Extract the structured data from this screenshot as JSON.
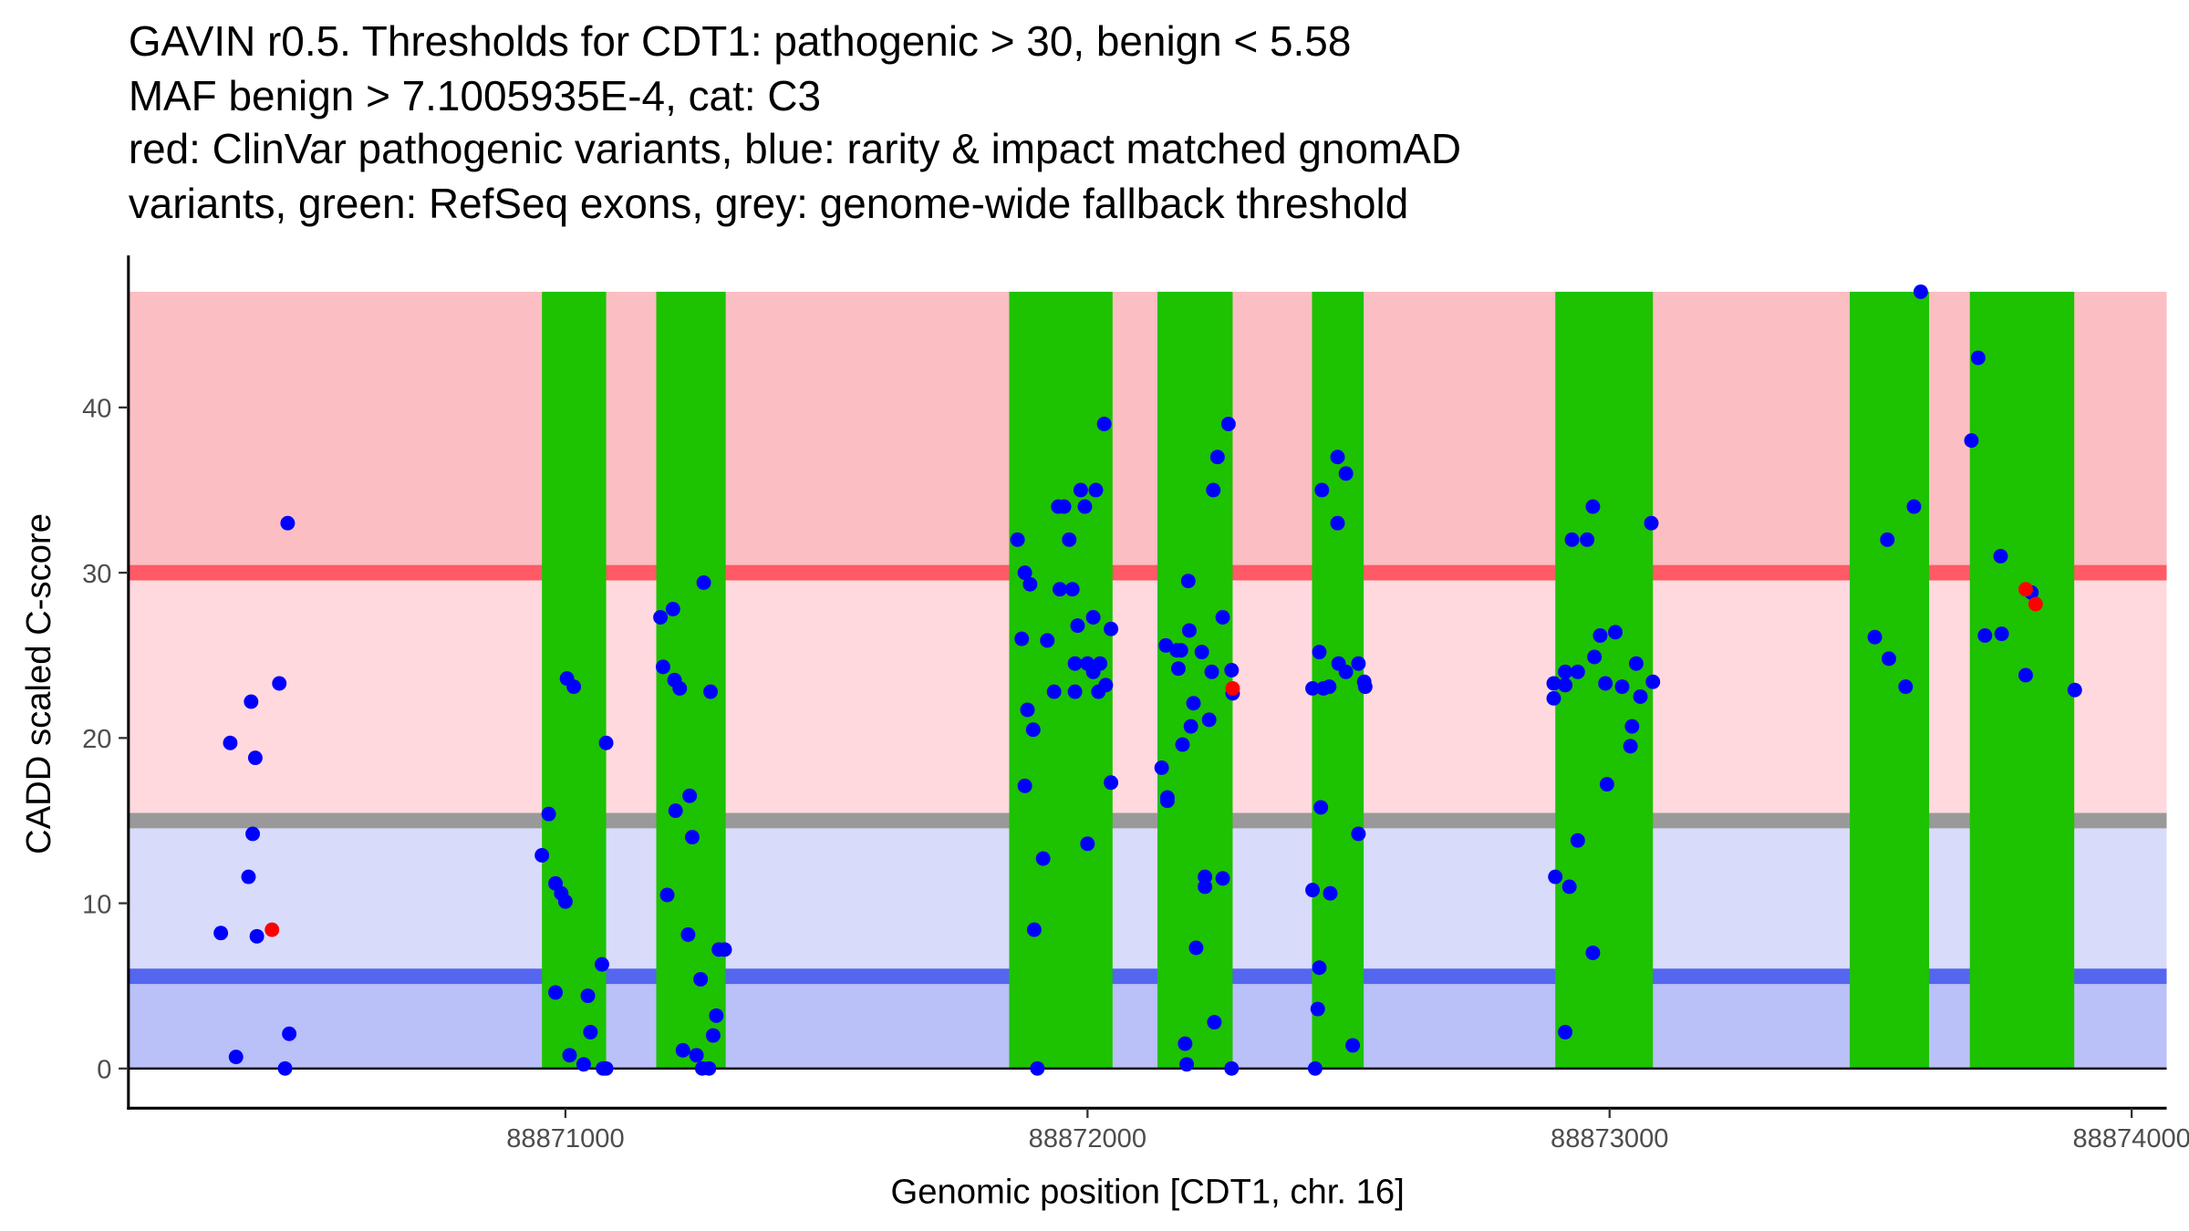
{
  "chart_data": {
    "type": "scatter",
    "title_lines": [
      "GAVIN r0.5. Thresholds for CDT1: pathogenic > 30, benign < 5.58",
      "MAF benign > 7.1005935E-4, cat: C3",
      "red: ClinVar pathogenic variants, blue: rarity & impact matched gnomAD",
      "variants, green: RefSeq exons, grey: genome-wide fallback threshold"
    ],
    "xlabel": "Genomic position [CDT1, chr. 16]",
    "ylabel": "CADD scaled C-score",
    "xlim": [
      88870163,
      88874067
    ],
    "ylim": [
      -2.4,
      49.2
    ],
    "x_ticks": [
      88871000,
      88872000,
      88873000,
      88874000
    ],
    "x_tick_labels": [
      "88871000",
      "88872000",
      "88873000",
      "88874000"
    ],
    "y_ticks": [
      0,
      10,
      20,
      30,
      40
    ],
    "y_tick_labels": [
      "0",
      "10",
      "20",
      "30",
      "40"
    ],
    "thresholds": {
      "pathogenic": 30,
      "benign": 5.58,
      "fallback": 15,
      "max_score": 47
    },
    "colors": {
      "band_top": "#FBBEC3",
      "band_mid": "#FFD9DD",
      "band_lowmid": "#D8DBFA",
      "band_low": "#BAC0F8",
      "pathogenic_line": "#FF5A66",
      "fallback_line": "#999999",
      "benign_line": "#5566EE",
      "exon": "#1DC200",
      "gnomad": "#0000FF",
      "clinvar": "#FF0000"
    },
    "exons": [
      [
        88870955,
        88871078
      ],
      [
        88871174,
        88871307
      ],
      [
        88871850,
        88872048
      ],
      [
        88872134,
        88872278
      ],
      [
        88872430,
        88872529
      ],
      [
        88872896,
        88873083
      ],
      [
        88873460,
        88873612
      ],
      [
        88873690,
        88873890
      ]
    ],
    "series": [
      {
        "name": "gnomAD variants",
        "color": "blue",
        "points": [
          [
            88870340,
            8.2
          ],
          [
            88870358,
            19.7
          ],
          [
            88870369,
            0.7
          ],
          [
            88870393,
            11.6
          ],
          [
            88870398,
            22.2
          ],
          [
            88870401,
            14.2
          ],
          [
            88870406,
            18.8
          ],
          [
            88870409,
            8.0
          ],
          [
            88870452,
            23.3
          ],
          [
            88870468,
            33.0
          ],
          [
            88870463,
            0
          ],
          [
            88870471,
            2.1
          ],
          [
            88870955,
            12.9
          ],
          [
            88870968,
            15.4
          ],
          [
            88870981,
            11.2
          ],
          [
            88870992,
            10.6
          ],
          [
            88871000,
            10.1
          ],
          [
            88870981,
            4.6
          ],
          [
            88871003,
            23.6
          ],
          [
            88871016,
            23.1
          ],
          [
            88871008,
            0.8
          ],
          [
            88871035,
            0.25
          ],
          [
            88871043,
            4.4
          ],
          [
            88871048,
            2.2
          ],
          [
            88871070,
            6.3
          ],
          [
            88871078,
            19.7
          ],
          [
            88871072,
            0
          ],
          [
            88871078,
            0
          ],
          [
            88871182,
            27.3
          ],
          [
            88871206,
            27.8
          ],
          [
            88871187,
            24.3
          ],
          [
            88871209,
            23.5
          ],
          [
            88871219,
            23.0
          ],
          [
            88871265,
            29.4
          ],
          [
            88871278,
            22.8
          ],
          [
            88871195,
            10.5
          ],
          [
            88871211,
            15.6
          ],
          [
            88871238,
            16.5
          ],
          [
            88871243,
            14.0
          ],
          [
            88871235,
            8.1
          ],
          [
            88871259,
            5.4
          ],
          [
            88871225,
            1.1
          ],
          [
            88871251,
            0.8
          ],
          [
            88871262,
            0
          ],
          [
            88871275,
            0
          ],
          [
            88871283,
            2.0
          ],
          [
            88871289,
            3.2
          ],
          [
            88871294,
            7.2
          ],
          [
            88871305,
            7.2
          ],
          [
            88871866,
            32.0
          ],
          [
            88871880,
            30.0
          ],
          [
            88871890,
            29.3
          ],
          [
            88871874,
            26.0
          ],
          [
            88871885,
            21.7
          ],
          [
            88871896,
            20.5
          ],
          [
            88871880,
            17.1
          ],
          [
            88871898,
            8.4
          ],
          [
            88871904,
            0
          ],
          [
            88871915,
            12.7
          ],
          [
            88871923,
            25.9
          ],
          [
            88871936,
            22.8
          ],
          [
            88871944,
            34.0
          ],
          [
            88871955,
            34.0
          ],
          [
            88871965,
            32.0
          ],
          [
            88871947,
            29.0
          ],
          [
            88871971,
            29.0
          ],
          [
            88871976,
            22.8
          ],
          [
            88871981,
            26.8
          ],
          [
            88871976,
            24.5
          ],
          [
            88871987,
            35.0
          ],
          [
            88871995,
            34.0
          ],
          [
            88872000,
            13.6
          ],
          [
            88872011,
            27.3
          ],
          [
            88872000,
            24.5
          ],
          [
            88872011,
            24.0
          ],
          [
            88872016,
            35.0
          ],
          [
            88872024,
            24.5
          ],
          [
            88872021,
            22.8
          ],
          [
            88872035,
            23.2
          ],
          [
            88872032,
            39.0
          ],
          [
            88872045,
            26.6
          ],
          [
            88872045,
            17.3
          ],
          [
            88872142,
            18.2
          ],
          [
            88872150,
            25.6
          ],
          [
            88872153,
            16.2
          ],
          [
            88872153,
            16.4
          ],
          [
            88872171,
            25.3
          ],
          [
            88872179,
            25.3
          ],
          [
            88872174,
            24.2
          ],
          [
            88872182,
            19.6
          ],
          [
            88872187,
            1.5
          ],
          [
            88872190,
            0.25
          ],
          [
            88872193,
            29.5
          ],
          [
            88872195,
            26.5
          ],
          [
            88872198,
            20.7
          ],
          [
            88872203,
            22.1
          ],
          [
            88872208,
            7.3
          ],
          [
            88872219,
            25.2
          ],
          [
            88872225,
            11.6
          ],
          [
            88872225,
            11.0
          ],
          [
            88872233,
            21.1
          ],
          [
            88872241,
            35.0
          ],
          [
            88872243,
            2.8
          ],
          [
            88872249,
            37.0
          ],
          [
            88872259,
            27.3
          ],
          [
            88872259,
            11.5
          ],
          [
            88872238,
            24.0
          ],
          [
            88872270,
            39.0
          ],
          [
            88872276,
            24.1
          ],
          [
            88872278,
            22.7
          ],
          [
            88872276,
            0
          ],
          [
            88872431,
            23.0
          ],
          [
            88872452,
            23.0
          ],
          [
            88872444,
            25.2
          ],
          [
            88872449,
            35.0
          ],
          [
            88872463,
            23.1
          ],
          [
            88872479,
            37.0
          ],
          [
            88872479,
            33.0
          ],
          [
            88872481,
            24.5
          ],
          [
            88872495,
            36.0
          ],
          [
            88872495,
            24.0
          ],
          [
            88872519,
            24.5
          ],
          [
            88872530,
            23.4
          ],
          [
            88872532,
            23.1
          ],
          [
            88872447,
            15.8
          ],
          [
            88872519,
            14.2
          ],
          [
            88872431,
            10.8
          ],
          [
            88872465,
            10.6
          ],
          [
            88872444,
            6.1
          ],
          [
            88872441,
            3.6
          ],
          [
            88872436,
            0
          ],
          [
            88872508,
            1.4
          ],
          [
            88872893,
            23.3
          ],
          [
            88872893,
            22.4
          ],
          [
            88872915,
            24.0
          ],
          [
            88872915,
            23.2
          ],
          [
            88872928,
            32.0
          ],
          [
            88872939,
            24.0
          ],
          [
            88872957,
            32.0
          ],
          [
            88872968,
            34.0
          ],
          [
            88872971,
            24.9
          ],
          [
            88872982,
            26.2
          ],
          [
            88872992,
            23.3
          ],
          [
            88873011,
            26.4
          ],
          [
            88873024,
            23.1
          ],
          [
            88873040,
            19.5
          ],
          [
            88873043,
            20.7
          ],
          [
            88873051,
            24.5
          ],
          [
            88873059,
            22.5
          ],
          [
            88873080,
            33.0
          ],
          [
            88873083,
            23.4
          ],
          [
            88872995,
            17.2
          ],
          [
            88872939,
            13.8
          ],
          [
            88872896,
            11.6
          ],
          [
            88872923,
            11.0
          ],
          [
            88872968,
            7.0
          ],
          [
            88872915,
            2.2
          ],
          [
            88873508,
            26.1
          ],
          [
            88873532,
            32.0
          ],
          [
            88873535,
            24.8
          ],
          [
            88873567,
            23.1
          ],
          [
            88873583,
            34.0
          ],
          [
            88873596,
            47.0
          ],
          [
            88873693,
            38.0
          ],
          [
            88873706,
            43.0
          ],
          [
            88873719,
            26.2
          ],
          [
            88873749,
            31.0
          ],
          [
            88873751,
            26.3
          ],
          [
            88873797,
            23.8
          ],
          [
            88873808,
            28.8
          ],
          [
            88873891,
            22.9
          ]
        ]
      },
      {
        "name": "ClinVar pathogenic variants",
        "color": "red",
        "points": [
          [
            88870438,
            8.4
          ],
          [
            88872278,
            23.0
          ],
          [
            88873797,
            29.0
          ],
          [
            88873816,
            28.1
          ]
        ]
      }
    ],
    "grid": false,
    "legend": "none"
  }
}
